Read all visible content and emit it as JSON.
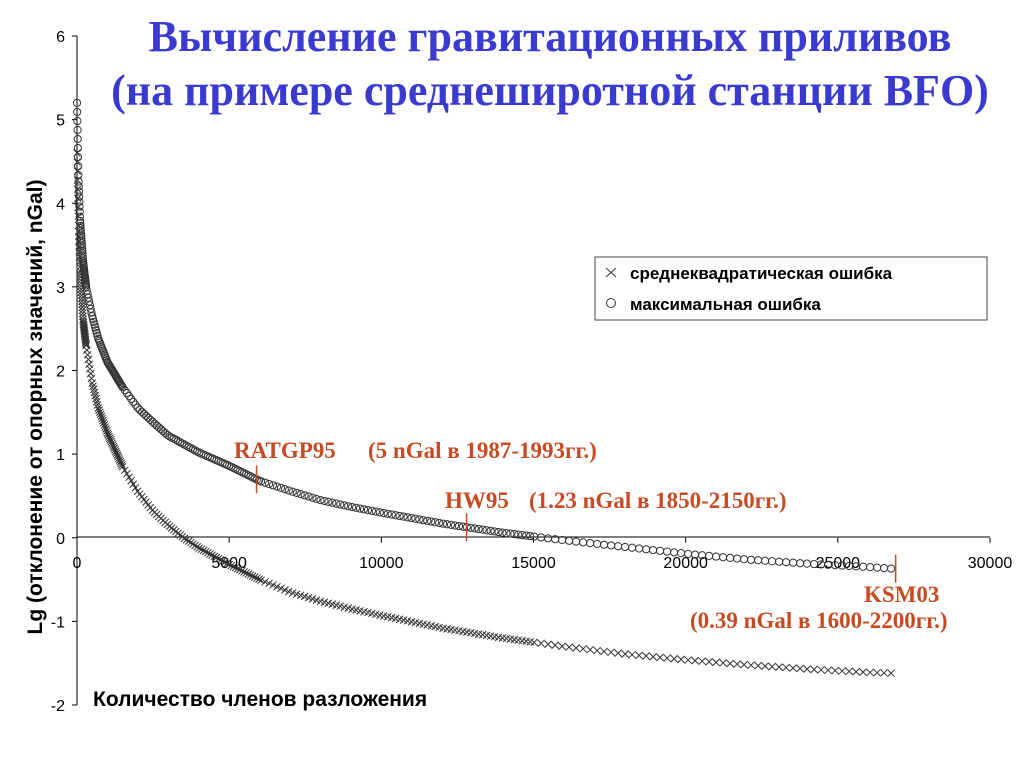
{
  "title": {
    "line1": "Вычисление гравитационных приливов",
    "line2": "(на примере среднеширотной станции BFO)"
  },
  "colors": {
    "title": "#3a3ad0",
    "annotation": "#c84a23",
    "markers": "#333333"
  },
  "chart_data": {
    "type": "scatter",
    "xlabel": "Количество членов разложения",
    "ylabel": "Lg (отклонение от опорных значений, nGal)",
    "xlim": [
      0,
      30000
    ],
    "ylim": [
      -2,
      6
    ],
    "x_ticks": [
      0,
      5000,
      10000,
      15000,
      20000,
      25000,
      30000
    ],
    "y_ticks": [
      6,
      5,
      4,
      3,
      2,
      1,
      0,
      -1,
      -2
    ],
    "grid": false,
    "legend_position": "right",
    "series": [
      {
        "name": "среднеквадратическая ошибка",
        "marker": "x",
        "x": [
          0,
          50,
          100,
          200,
          300,
          500,
          700,
          1000,
          1500,
          2000,
          2500,
          3000,
          3500,
          4000,
          5000,
          6000,
          7000,
          8000,
          9000,
          10000,
          12000,
          14000,
          16000,
          18000,
          20000,
          22000,
          24000,
          25000,
          26000,
          26800
        ],
        "y": [
          4.6,
          3.7,
          3.2,
          2.6,
          2.3,
          1.85,
          1.55,
          1.25,
          0.85,
          0.55,
          0.32,
          0.15,
          0.0,
          -0.12,
          -0.32,
          -0.5,
          -0.65,
          -0.76,
          -0.85,
          -0.93,
          -1.08,
          -1.2,
          -1.3,
          -1.39,
          -1.46,
          -1.52,
          -1.57,
          -1.59,
          -1.61,
          -1.62
        ]
      },
      {
        "name": "максимальная ошибка",
        "marker": "o",
        "x": [
          0,
          50,
          100,
          200,
          300,
          500,
          700,
          1000,
          1500,
          2000,
          2500,
          3000,
          3500,
          4000,
          5000,
          6000,
          7000,
          8000,
          9000,
          10000,
          12000,
          14000,
          16000,
          18000,
          20000,
          22000,
          24000,
          25000,
          26000,
          26800
        ],
        "y": [
          5.2,
          4.3,
          3.8,
          3.3,
          3.0,
          2.65,
          2.38,
          2.1,
          1.8,
          1.55,
          1.38,
          1.22,
          1.12,
          1.02,
          0.86,
          0.68,
          0.56,
          0.45,
          0.37,
          0.3,
          0.17,
          0.06,
          -0.03,
          -0.11,
          -0.19,
          -0.26,
          -0.31,
          -0.33,
          -0.35,
          -0.37
        ]
      }
    ],
    "annotations": [
      {
        "name": "RATGP95",
        "text": "(5 nGal в 1987-1993гг.)",
        "x": 5900
      },
      {
        "name": "HW95",
        "text": "(1.23 nGal в 1850-2150гг.)",
        "x": 12800
      },
      {
        "name": "KSM03",
        "text": "(0.39 nGal в 1600-2200гг.)",
        "x": 26900
      }
    ]
  }
}
